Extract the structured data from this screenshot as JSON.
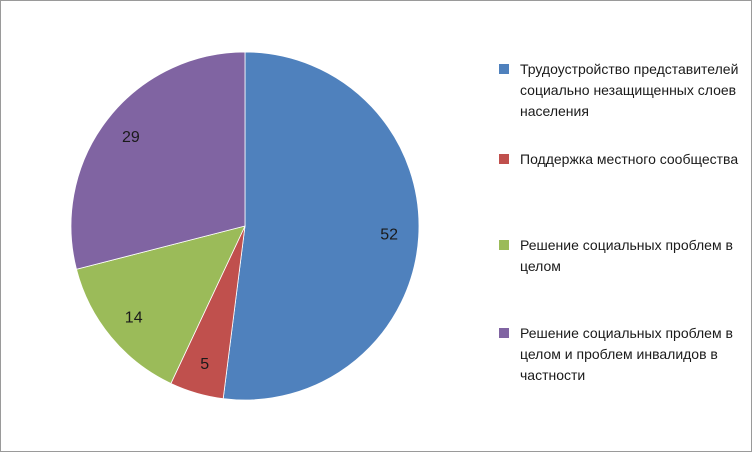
{
  "chart_data": {
    "type": "pie",
    "categories": [
      "Трудоустройство представителей социально незащищенных слоев населения",
      "Поддержка местного сообщества",
      "Решение социальных проблем в целом",
      "Решение социальных проблем в целом и проблем инвалидов в частности"
    ],
    "values": [
      52,
      5,
      14,
      29
    ],
    "value_labels": [
      "52",
      "5",
      "14",
      "29"
    ],
    "colors": [
      "#4f81bd",
      "#c0504d",
      "#9bbb59",
      "#8064a2"
    ],
    "legend_position": "right",
    "start_angle_deg": 0,
    "direction": "clockwise"
  }
}
